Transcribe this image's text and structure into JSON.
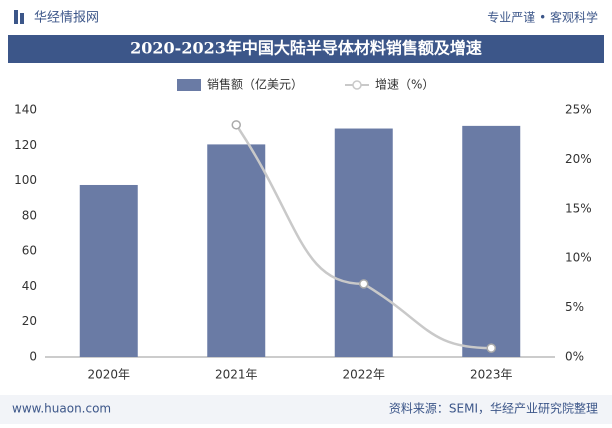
{
  "header": {
    "logo": "华经情报网",
    "slogan": "专业严谨 • 客观科学"
  },
  "chart_data": {
    "type": "bar",
    "title": "2020-2023年中国大陆半导体材料销售额及增速",
    "categories": [
      "2020年",
      "2021年",
      "2022年",
      "2023年"
    ],
    "series": [
      {
        "name": "销售额（亿美元）",
        "type": "bar",
        "color": "#6a7ba5",
        "values": [
          97.5,
          120.5,
          129.5,
          131
        ]
      },
      {
        "name": "增速（%）",
        "type": "line",
        "axis": "y2",
        "color": "#c9c9c9",
        "values": [
          null,
          23.5,
          7.4,
          0.9
        ]
      }
    ],
    "ylim": [
      0,
      140
    ],
    "yticks": [
      0,
      20,
      40,
      60,
      80,
      100,
      120,
      140
    ],
    "y2lim": [
      0,
      25
    ],
    "y2ticks": [
      {
        "value": 0,
        "label": "0%"
      },
      {
        "value": 5,
        "label": "5%"
      },
      {
        "value": 10,
        "label": "10%"
      },
      {
        "value": 15,
        "label": "15%"
      },
      {
        "value": 20,
        "label": "20%"
      },
      {
        "value": 25,
        "label": "25%"
      }
    ],
    "legend": "top"
  },
  "footer": {
    "website": "www.huaon.com",
    "source": "资料来源：SEMI，华经产业研究院整理"
  }
}
